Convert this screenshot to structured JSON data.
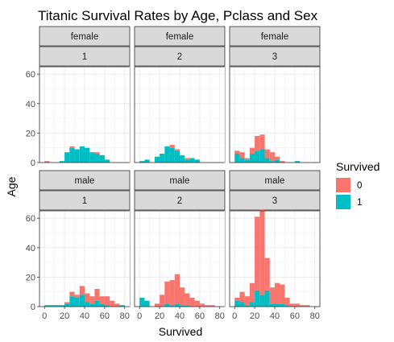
{
  "chart_data": {
    "type": "bar",
    "subtype": "faceted-histogram",
    "title": "Titanic Survival Rates by Age, Pclass and Sex",
    "xlabel": "Survived",
    "ylabel": "Age",
    "xlim": [
      -5,
      85
    ],
    "ylim": [
      0,
      65
    ],
    "x_ticks": [
      0,
      20,
      40,
      60,
      80
    ],
    "y_ticks": [
      0,
      20,
      40,
      60
    ],
    "bin_width": 5,
    "grid": true,
    "stacked": true,
    "legend": {
      "title": "Survived",
      "placement": "right",
      "entries": [
        {
          "label": "0",
          "color": "#F8766D"
        },
        {
          "label": "1",
          "color": "#00BFC4"
        }
      ]
    },
    "facets": [
      {
        "sex": "female",
        "pclass": "1",
        "bins_x": [
          0,
          15,
          20,
          25,
          30,
          35,
          40,
          45,
          50,
          55,
          60
        ],
        "survived_0": [
          1,
          0,
          0,
          1,
          0,
          0,
          0,
          0,
          1,
          0,
          0
        ],
        "survived_1": [
          0,
          1,
          7,
          10,
          9,
          11,
          10,
          7,
          6,
          5,
          2
        ]
      },
      {
        "sex": "female",
        "pclass": "2",
        "bins_x": [
          0,
          5,
          10,
          15,
          20,
          25,
          30,
          35,
          40,
          45,
          50,
          55
        ],
        "survived_0": [
          0,
          0,
          0,
          0,
          0,
          0,
          2,
          1,
          0,
          1,
          0,
          0
        ],
        "survived_1": [
          1,
          2,
          0,
          4,
          6,
          11,
          10,
          8,
          5,
          2,
          3,
          2
        ]
      },
      {
        "sex": "female",
        "pclass": "3",
        "bins_x": [
          0,
          5,
          10,
          15,
          20,
          25,
          30,
          35,
          40,
          45,
          60
        ],
        "survived_0": [
          2,
          4,
          1,
          4,
          10,
          10,
          6,
          6,
          2,
          1,
          0
        ],
        "survived_1": [
          6,
          3,
          2,
          6,
          8,
          9,
          3,
          1,
          2,
          0,
          1
        ]
      },
      {
        "sex": "male",
        "pclass": "1",
        "bins_x": [
          0,
          5,
          10,
          15,
          20,
          25,
          30,
          35,
          40,
          45,
          50,
          55,
          60,
          65,
          70,
          75
        ],
        "survived_0": [
          0,
          0,
          0,
          0,
          1,
          3,
          2,
          6,
          6,
          5,
          8,
          5,
          6,
          4,
          2,
          0
        ],
        "survived_1": [
          1,
          1,
          1,
          1,
          2,
          7,
          6,
          8,
          3,
          2,
          4,
          2,
          1,
          0,
          0,
          1
        ]
      },
      {
        "sex": "male",
        "pclass": "2",
        "bins_x": [
          0,
          5,
          15,
          20,
          25,
          30,
          35,
          40,
          45,
          50,
          55,
          60,
          65,
          70
        ],
        "survived_0": [
          0,
          0,
          2,
          8,
          15,
          17,
          20,
          12,
          8,
          6,
          4,
          2,
          1,
          1
        ],
        "survived_1": [
          6,
          4,
          0,
          0,
          2,
          1,
          2,
          1,
          1,
          0,
          0,
          0,
          0,
          0
        ]
      },
      {
        "sex": "male",
        "pclass": "3",
        "bins_x": [
          0,
          5,
          10,
          15,
          20,
          25,
          30,
          35,
          40,
          45,
          50,
          55,
          60,
          65,
          70
        ],
        "survived_0": [
          2,
          7,
          6,
          13,
          50,
          58,
          22,
          11,
          14,
          13,
          5,
          2,
          2,
          1,
          1
        ],
        "survived_1": [
          4,
          3,
          1,
          3,
          11,
          8,
          11,
          2,
          2,
          2,
          1,
          0,
          0,
          0,
          0
        ]
      }
    ]
  }
}
